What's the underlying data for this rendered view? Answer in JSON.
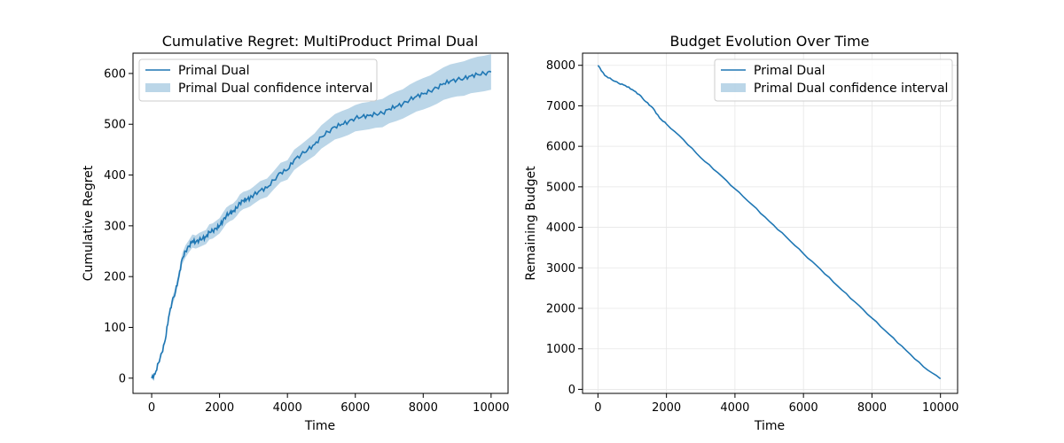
{
  "chart_data": [
    {
      "type": "line",
      "title": "Cumulative Regret: MultiProduct Primal Dual",
      "xlabel": "Time",
      "ylabel": "Cumulative Regret",
      "xlim": [
        -550,
        10500
      ],
      "ylim": [
        -30,
        640
      ],
      "xticks": [
        0,
        2000,
        4000,
        6000,
        8000,
        10000
      ],
      "yticks": [
        0,
        100,
        200,
        300,
        400,
        500,
        600
      ],
      "grid": false,
      "legend_position": "top-left",
      "color": "#1f77b4",
      "band_color": "#1f77b4",
      "series": [
        {
          "name": "Primal Dual",
          "x": [
            0,
            100,
            200,
            300,
            400,
            500,
            600,
            700,
            800,
            900,
            1000,
            1100,
            1200,
            1300,
            1400,
            1500,
            1600,
            1700,
            1800,
            1900,
            2000,
            2100,
            2200,
            2300,
            2400,
            2500,
            2600,
            2700,
            2800,
            2900,
            3000,
            3200,
            3400,
            3600,
            3800,
            4000,
            4200,
            4400,
            4600,
            4800,
            5000,
            5200,
            5400,
            5600,
            5800,
            6000,
            6200,
            6400,
            6600,
            6800,
            7000,
            7200,
            7400,
            7600,
            7800,
            8000,
            8200,
            8400,
            8600,
            8800,
            9000,
            9200,
            9400,
            9600,
            9800,
            10000
          ],
          "y": [
            0,
            8,
            30,
            50,
            75,
            120,
            150,
            170,
            200,
            235,
            250,
            260,
            270,
            268,
            272,
            275,
            278,
            288,
            290,
            295,
            300,
            310,
            320,
            325,
            328,
            335,
            345,
            350,
            352,
            355,
            360,
            370,
            375,
            390,
            405,
            410,
            430,
            440,
            450,
            460,
            475,
            485,
            495,
            500,
            505,
            512,
            515,
            517,
            520,
            522,
            530,
            535,
            540,
            548,
            555,
            560,
            565,
            572,
            580,
            585,
            588,
            590,
            595,
            598,
            600,
            603
          ],
          "ci_half_width": [
            2,
            3,
            4,
            5,
            6,
            7,
            8,
            9,
            10,
            11,
            12,
            12,
            13,
            13,
            14,
            14,
            14,
            15,
            15,
            15,
            15,
            16,
            16,
            16,
            16,
            16,
            17,
            17,
            17,
            17,
            17,
            18,
            18,
            18,
            19,
            19,
            20,
            20,
            21,
            22,
            23,
            24,
            25,
            26,
            26,
            26,
            27,
            27,
            27,
            28,
            28,
            29,
            29,
            30,
            30,
            31,
            31,
            32,
            32,
            33,
            33,
            34,
            34,
            35,
            35,
            35
          ]
        },
        {
          "name": "Primal Dual confidence interval"
        }
      ]
    },
    {
      "type": "line",
      "title": "Budget Evolution Over Time",
      "xlabel": "Time",
      "ylabel": "Remaining Budget",
      "xlim": [
        -450,
        10500
      ],
      "ylim": [
        -100,
        8300
      ],
      "xticks": [
        0,
        2000,
        4000,
        6000,
        8000,
        10000
      ],
      "yticks": [
        0,
        1000,
        2000,
        3000,
        4000,
        5000,
        6000,
        7000,
        8000
      ],
      "grid": true,
      "legend_position": "top-right",
      "color": "#1f77b4",
      "series": [
        {
          "name": "Primal Dual",
          "x": [
            0,
            200,
            400,
            600,
            800,
            1000,
            1200,
            1400,
            1600,
            1800,
            2000,
            2500,
            3000,
            3500,
            4000,
            4500,
            5000,
            5500,
            6000,
            6500,
            7000,
            7500,
            8000,
            8500,
            9000,
            9500,
            10000
          ],
          "y": [
            8000,
            7750,
            7650,
            7560,
            7500,
            7400,
            7280,
            7100,
            6950,
            6700,
            6550,
            6160,
            5720,
            5350,
            4950,
            4560,
            4150,
            3760,
            3350,
            2960,
            2550,
            2160,
            1760,
            1360,
            960,
            560,
            260
          ]
        },
        {
          "name": "Primal Dual confidence interval"
        }
      ]
    }
  ]
}
